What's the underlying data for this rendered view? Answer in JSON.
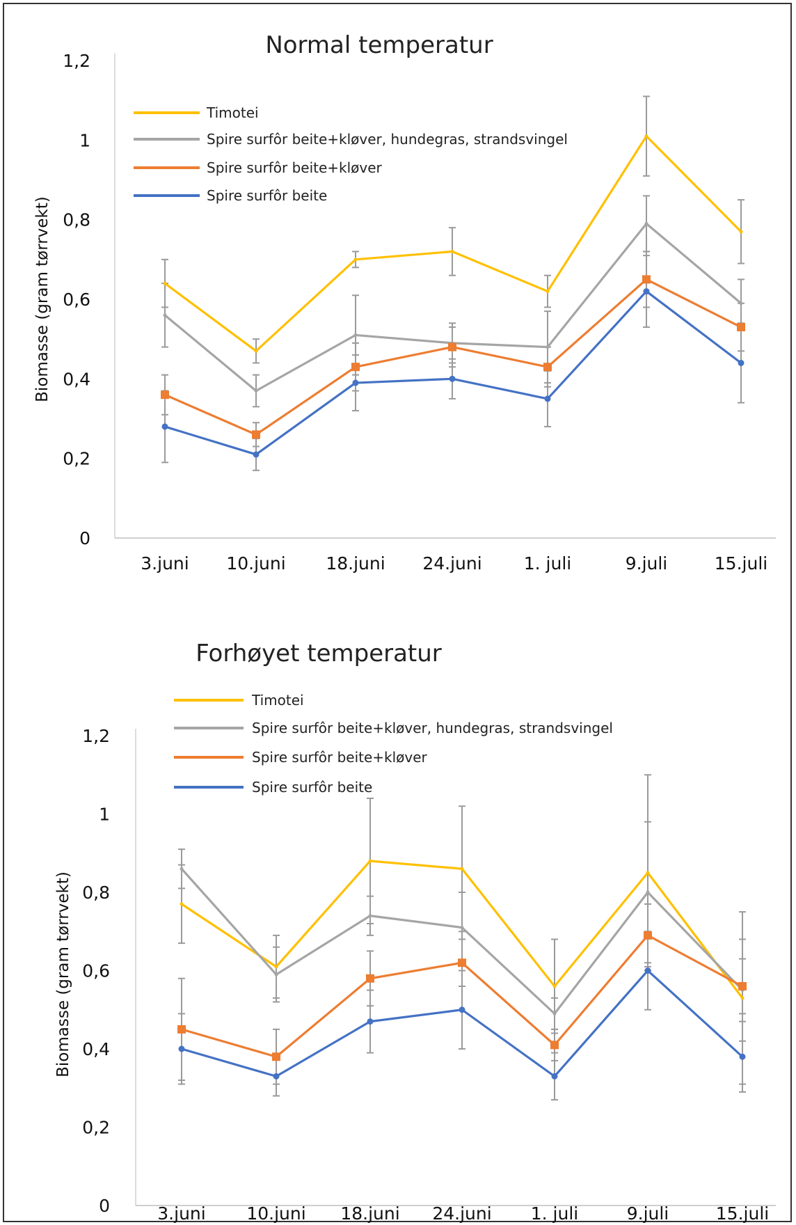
{
  "chart_data": [
    {
      "type": "line",
      "title": "Normal temperatur",
      "xlabel": "",
      "ylabel": "Biomasse (gram tørrvekt)",
      "ylim": [
        0,
        1.2
      ],
      "yticks": [
        "0",
        "0,2",
        "0,4",
        "0,6",
        "0,8",
        "1",
        "1,2"
      ],
      "ytick_values": [
        0,
        0.2,
        0.4,
        0.6,
        0.8,
        1.0,
        1.2
      ],
      "categories": [
        "3.juni",
        "10.juni",
        "18.juni",
        "24.juni",
        "1. juli",
        "9.juli",
        "15.juli"
      ],
      "grid": false,
      "legend": "top-left",
      "series": [
        {
          "name": "Timotei",
          "color": "#FFC000",
          "marker": "none",
          "values": [
            0.64,
            0.47,
            0.7,
            0.72,
            0.62,
            1.01,
            0.77
          ],
          "errors": [
            0.06,
            0.03,
            0.02,
            0.06,
            0.04,
            0.1,
            0.08
          ]
        },
        {
          "name": "Spire surfôr beite+kløver, hundegras, strandsvingel",
          "color": "#A5A5A5",
          "marker": "none",
          "values": [
            0.56,
            0.37,
            0.51,
            0.49,
            0.48,
            0.79,
            0.59
          ],
          "errors": [
            0.08,
            0.04,
            0.1,
            0.05,
            0.09,
            0.07,
            0.06
          ]
        },
        {
          "name": "Spire surfôr beite+kløver",
          "color": "#ED7D31",
          "marker": "square",
          "values": [
            0.36,
            0.26,
            0.43,
            0.48,
            0.43,
            0.65,
            0.53
          ],
          "errors": [
            0.05,
            0.03,
            0.06,
            0.05,
            0.05,
            0.07,
            0.06
          ]
        },
        {
          "name": "Spire surfôr beite",
          "color": "#4472C4",
          "marker": "dot",
          "values": [
            0.28,
            0.21,
            0.39,
            0.4,
            0.35,
            0.62,
            0.44
          ],
          "errors": [
            0.09,
            0.04,
            0.07,
            0.05,
            0.07,
            0.09,
            0.1
          ]
        }
      ]
    },
    {
      "type": "line",
      "title": "Forhøyet temperatur",
      "xlabel": "",
      "ylabel": "Biomasse (gram tørrvekt)",
      "ylim": [
        0,
        1.2
      ],
      "yticks": [
        "0",
        "0,2",
        "0,4",
        "0,6",
        "0,8",
        "1",
        "1,2"
      ],
      "ytick_values": [
        0,
        0.2,
        0.4,
        0.6,
        0.8,
        1.0,
        1.2
      ],
      "categories": [
        "3.juni",
        "10.juni",
        "18.juni",
        "24.juni",
        "1. juli",
        "9.juli",
        "15.juli"
      ],
      "grid": false,
      "legend": "top-left",
      "series": [
        {
          "name": "Timotei",
          "color": "#FFC000",
          "marker": "none",
          "values": [
            0.77,
            0.61,
            0.88,
            0.86,
            0.56,
            0.85,
            0.53
          ],
          "errors": [
            0.1,
            0.08,
            0.16,
            0.16,
            0.12,
            0.25,
            0.22
          ]
        },
        {
          "name": "Spire surfôr beite+kløver, hundegras, strandsvingel",
          "color": "#A5A5A5",
          "marker": "none",
          "values": [
            0.86,
            0.59,
            0.74,
            0.71,
            0.49,
            0.8,
            0.55
          ],
          "errors": [
            0.05,
            0.07,
            0.05,
            0.09,
            0.04,
            0.18,
            0.13
          ]
        },
        {
          "name": "Spire surfôr beite+kløver",
          "color": "#ED7D31",
          "marker": "square",
          "values": [
            0.45,
            0.38,
            0.58,
            0.62,
            0.41,
            0.69,
            0.56
          ],
          "errors": [
            0.13,
            0.07,
            0.07,
            0.06,
            0.04,
            0.08,
            0.07
          ]
        },
        {
          "name": "Spire surfôr beite",
          "color": "#4472C4",
          "marker": "dot",
          "values": [
            0.4,
            0.33,
            0.47,
            0.5,
            0.33,
            0.6,
            0.38
          ],
          "errors": [
            0.09,
            0.05,
            0.08,
            0.1,
            0.06,
            0.1,
            0.09
          ]
        }
      ]
    }
  ]
}
